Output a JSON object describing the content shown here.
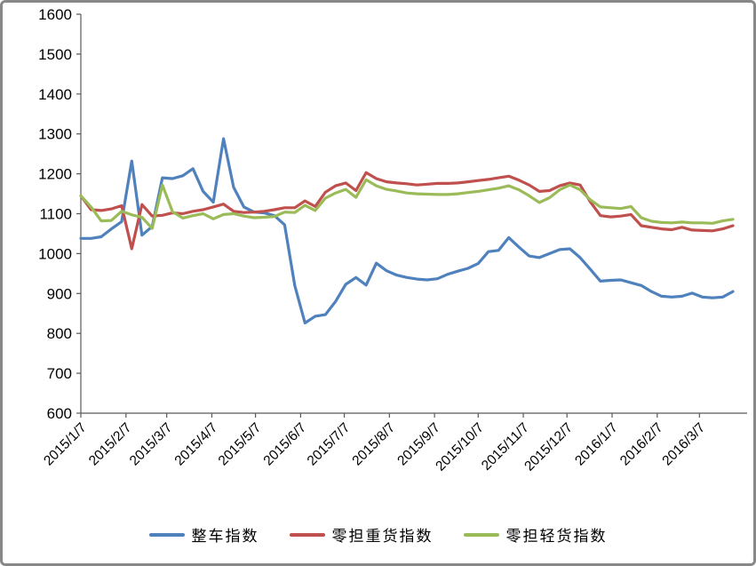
{
  "chart_data": {
    "type": "line",
    "title": "",
    "grid": false,
    "legend_position": "bottom",
    "ylim": [
      600,
      1600
    ],
    "y_tick_step": 100,
    "y_tick_labels": [
      "600",
      "700",
      "800",
      "900",
      "1000",
      "1100",
      "1200",
      "1300",
      "1400",
      "1500",
      "1600"
    ],
    "x_axis_start_date": "2015/1/7",
    "point_interval_days": 7,
    "x_tick_labels": [
      "2015/1/7",
      "2015/2/7",
      "2015/3/7",
      "2015/4/7",
      "2015/5/7",
      "2015/6/7",
      "2015/7/7",
      "2015/8/7",
      "2015/9/7",
      "2015/10/7",
      "2015/11/7",
      "2015/12/7",
      "2016/1/7",
      "2016/2/7",
      "2016/3/7"
    ],
    "series": [
      {
        "name": "整车指数",
        "color": "#4F81BD",
        "values": [
          1038,
          1038,
          1042,
          1062,
          1080,
          1232,
          1046,
          1068,
          1190,
          1188,
          1195,
          1213,
          1156,
          1129,
          1288,
          1166,
          1117,
          1104,
          1102,
          1095,
          1072,
          920,
          826,
          843,
          847,
          880,
          923,
          940,
          921,
          976,
          957,
          946,
          940,
          936,
          934,
          937,
          948,
          956,
          963,
          975,
          1005,
          1008,
          1040,
          1016,
          994,
          990,
          1000,
          1010,
          1012,
          990,
          961,
          931,
          933,
          934,
          927,
          920,
          905,
          893,
          891,
          893,
          901,
          891,
          889,
          891,
          905
        ]
      },
      {
        "name": "零担重货指数",
        "color": "#C0504D",
        "values": [
          1145,
          1110,
          1108,
          1112,
          1120,
          1012,
          1123,
          1094,
          1096,
          1102,
          1100,
          1106,
          1110,
          1117,
          1124,
          1106,
          1103,
          1104,
          1106,
          1110,
          1115,
          1115,
          1132,
          1118,
          1154,
          1170,
          1177,
          1158,
          1203,
          1188,
          1180,
          1177,
          1175,
          1172,
          1174,
          1176,
          1176,
          1177,
          1180,
          1183,
          1186,
          1190,
          1194,
          1184,
          1172,
          1156,
          1158,
          1170,
          1177,
          1172,
          1130,
          1095,
          1092,
          1094,
          1098,
          1070,
          1066,
          1062,
          1060,
          1066,
          1059,
          1058,
          1057,
          1062,
          1070
        ]
      },
      {
        "name": "零担轻货指数",
        "color": "#9BBB59",
        "values": [
          1145,
          1117,
          1082,
          1083,
          1106,
          1097,
          1091,
          1063,
          1172,
          1105,
          1089,
          1095,
          1100,
          1087,
          1098,
          1100,
          1094,
          1090,
          1091,
          1093,
          1104,
          1103,
          1121,
          1108,
          1139,
          1152,
          1161,
          1141,
          1185,
          1170,
          1161,
          1157,
          1152,
          1150,
          1149,
          1148,
          1148,
          1150,
          1153,
          1156,
          1160,
          1164,
          1170,
          1160,
          1145,
          1128,
          1140,
          1160,
          1172,
          1160,
          1135,
          1117,
          1115,
          1113,
          1118,
          1090,
          1081,
          1078,
          1077,
          1079,
          1077,
          1077,
          1076,
          1082,
          1086
        ]
      }
    ]
  },
  "colors": {
    "page_border": "#888888",
    "axis": "#595959",
    "text": "#000000",
    "background": "#ffffff"
  }
}
